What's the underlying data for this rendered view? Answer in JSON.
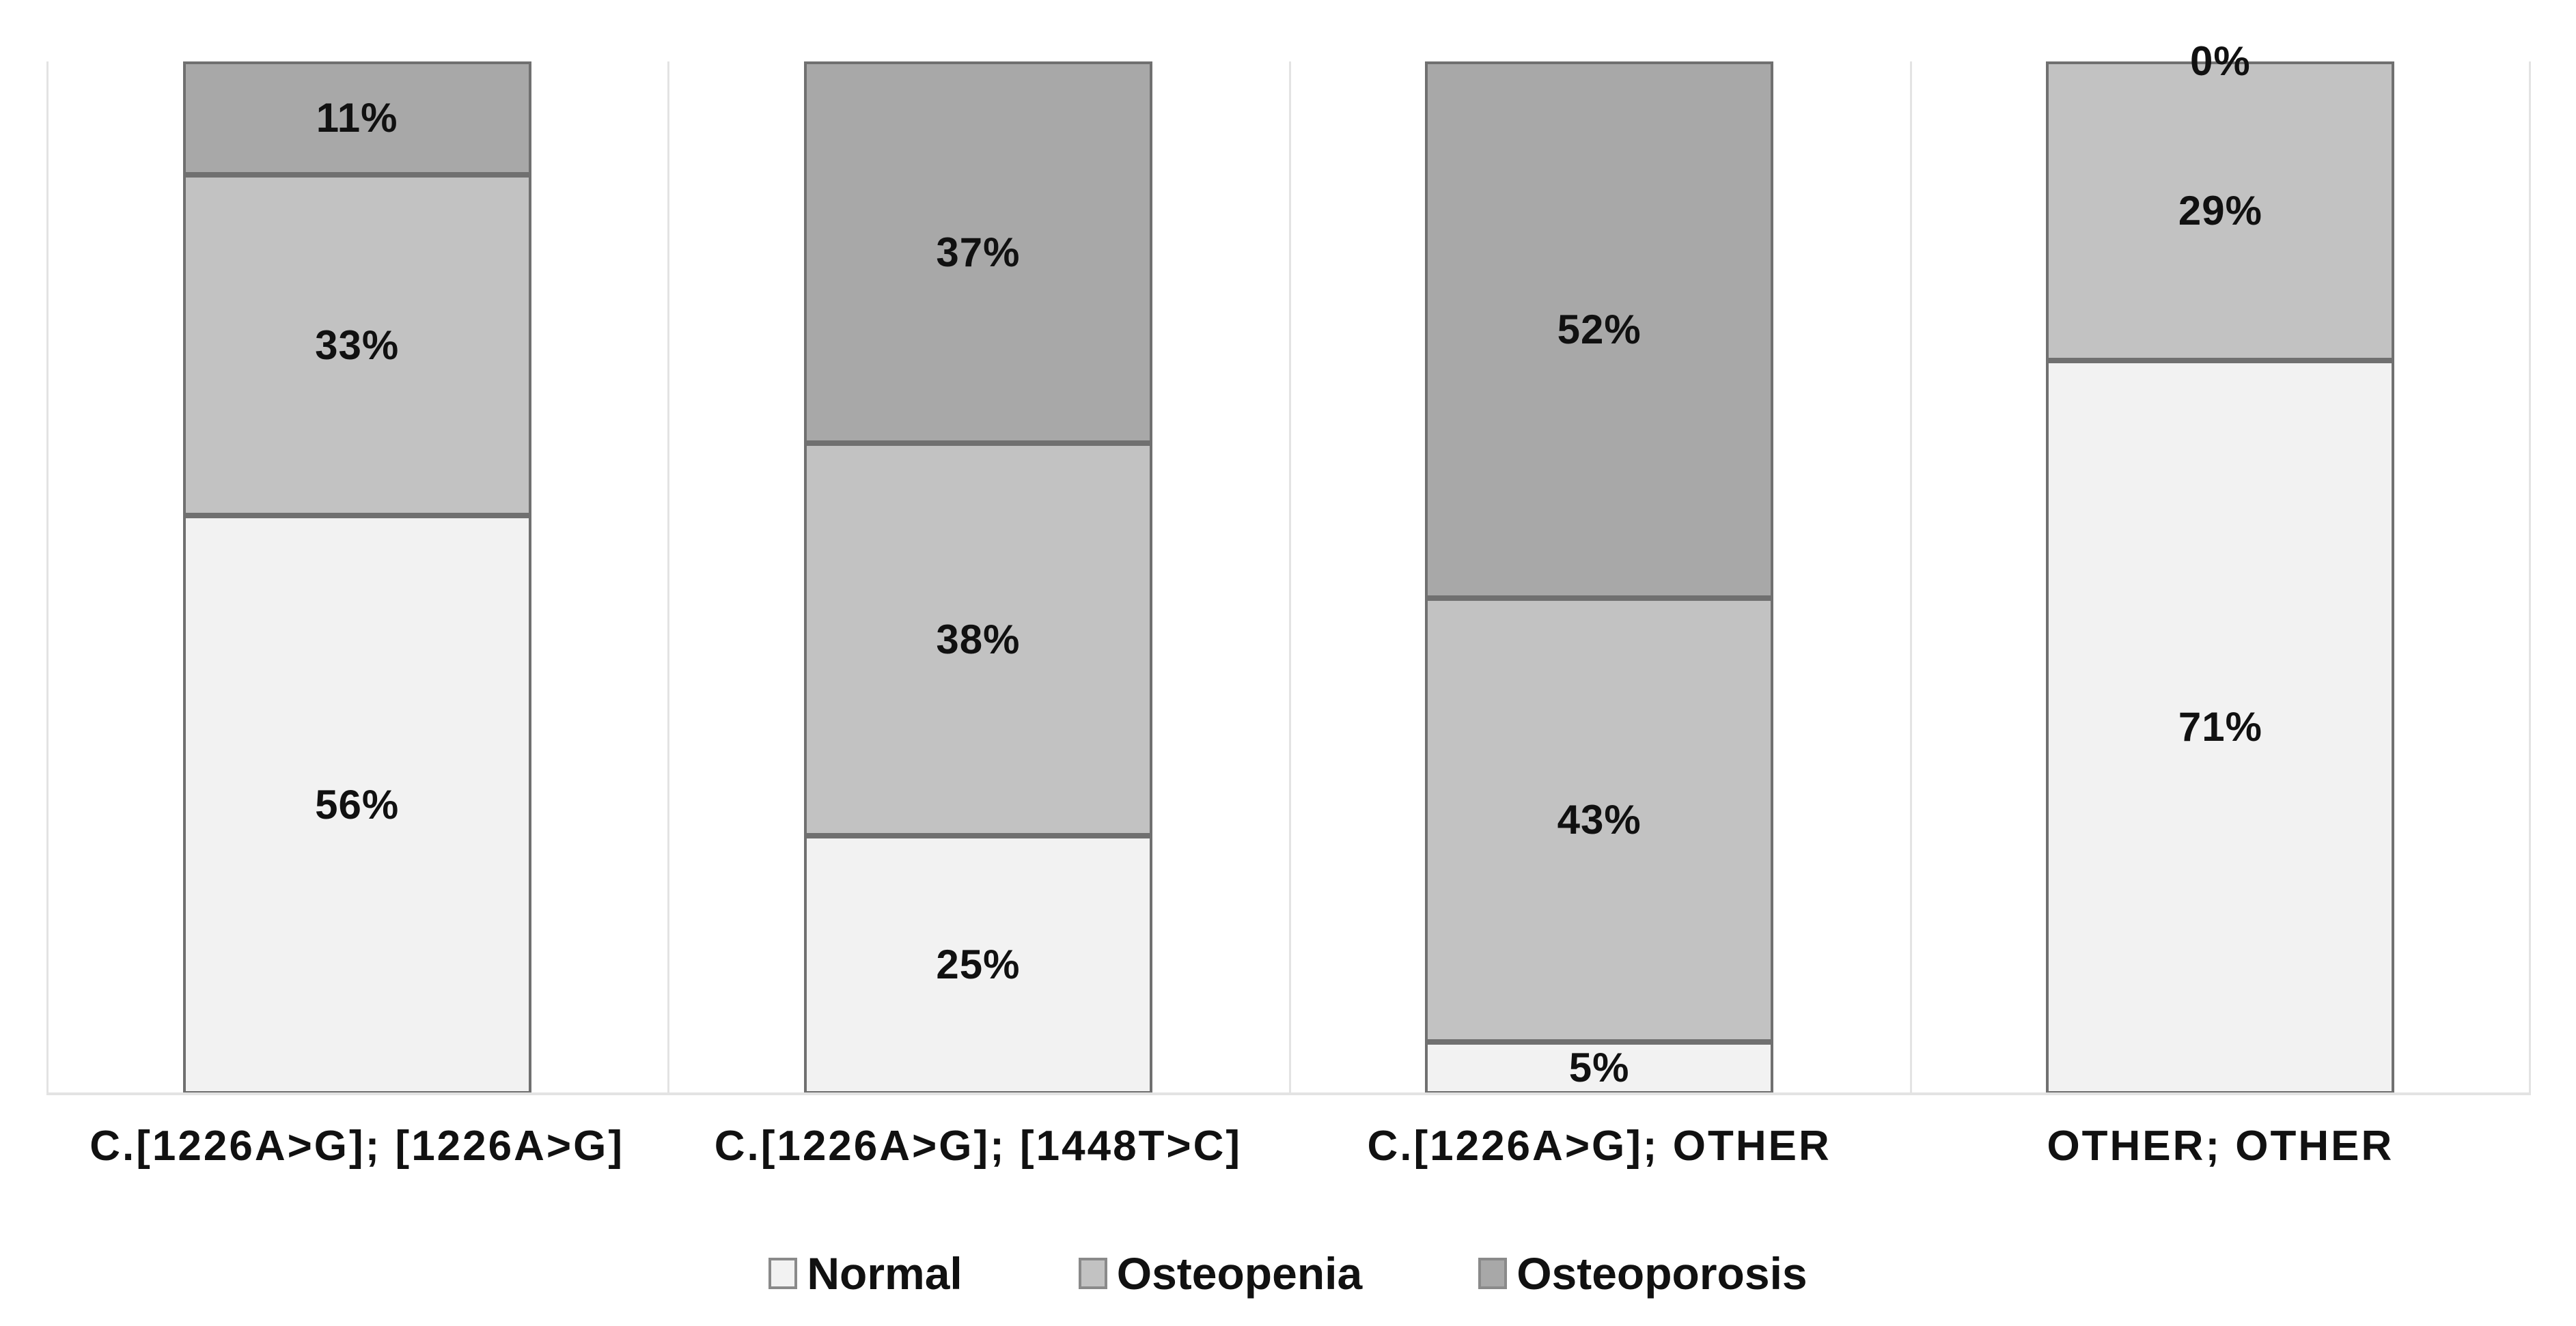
{
  "chart_data": {
    "type": "bar",
    "variant": "stacked-100-percent-column",
    "title": "",
    "xlabel": "",
    "ylabel": "",
    "ylim": [
      0,
      100
    ],
    "grid": "vertical-category-separators",
    "legend_position": "bottom-center",
    "value_suffix": "%",
    "categories": [
      "C.[1226A>G]; [1226A>G]",
      "C.[1226A>G]; [1448T>C]",
      "C.[1226A>G]; OTHER",
      "OTHER; OTHER"
    ],
    "series": [
      {
        "name": "Normal",
        "color": "#f2f2f2",
        "values": [
          56,
          25,
          5,
          71
        ]
      },
      {
        "name": "Osteopenia",
        "color": "#c2c2c2",
        "values": [
          33,
          38,
          43,
          29
        ]
      },
      {
        "name": "Osteoporosis",
        "color": "#a8a8a8",
        "values": [
          11,
          37,
          52,
          0
        ]
      }
    ],
    "stack_order_top_to_bottom": [
      "Osteoporosis",
      "Osteopenia",
      "Normal"
    ],
    "data_labels": {
      "bar_1": [
        "11%",
        "33%",
        "56%"
      ],
      "bar_2": [
        "37%",
        "38%",
        "25%"
      ],
      "bar_3": [
        "52%",
        "43%",
        "5%"
      ],
      "bar_4": [
        "0%",
        "29%",
        "71%"
      ]
    }
  },
  "style": {
    "background": "#ffffff",
    "segment_border": "#707070",
    "separator_line": "#e3e3e3",
    "baseline": "#e3e3e3",
    "text_color": "#111111",
    "legend_swatch_border": "#8a8a8a"
  }
}
